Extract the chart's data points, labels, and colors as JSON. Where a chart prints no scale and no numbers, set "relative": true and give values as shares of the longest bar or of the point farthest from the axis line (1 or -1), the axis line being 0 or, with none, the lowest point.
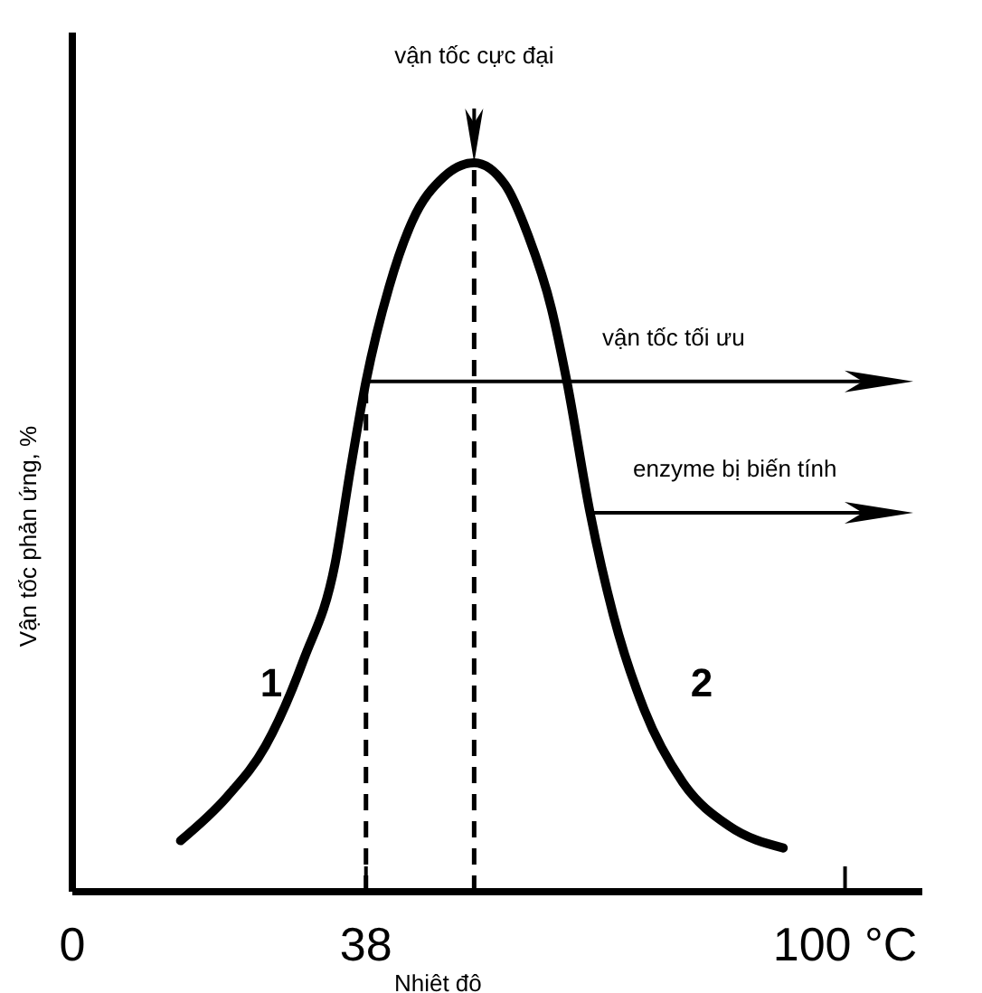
{
  "chart_data": {
    "type": "line",
    "relative": true,
    "xlabel": "Nhiêt đô",
    "ylabel": "Vận tốc phản ứng, %",
    "x": [
      14,
      20,
      25,
      30,
      34,
      36,
      38,
      41,
      44,
      48,
      52,
      56,
      59,
      62,
      64,
      67,
      70,
      74,
      79,
      85,
      92
    ],
    "series": [
      {
        "color": "#000000",
        "values": [
          0.07,
          0.13,
          0.2,
          0.32,
          0.45,
          0.58,
          0.7,
          0.83,
          0.92,
          0.98,
          1,
          0.97,
          0.9,
          0.8,
          0.7,
          0.52,
          0.38,
          0.25,
          0.15,
          0.09,
          0.06
        ]
      }
    ],
    "xlim": [
      0,
      110
    ],
    "xticks": [
      0,
      38,
      {
        "value": 100,
        "label": "100 °C"
      }
    ],
    "line_style": "solid",
    "marker": "none",
    "ref_lines": [
      {
        "axis": "x",
        "value": 38,
        "line_style": "dashed"
      },
      {
        "axis": "x",
        "value": 52,
        "line_style": "dashed"
      },
      {
        "axis": "y",
        "value": 0.7,
        "label": "vận tốc tối ưu"
      },
      {
        "axis": "y",
        "value": 0.52,
        "label": "enzyme bị biến tính"
      }
    ],
    "annotations": [
      "vận tốc cực đại",
      "1",
      "2"
    ]
  }
}
